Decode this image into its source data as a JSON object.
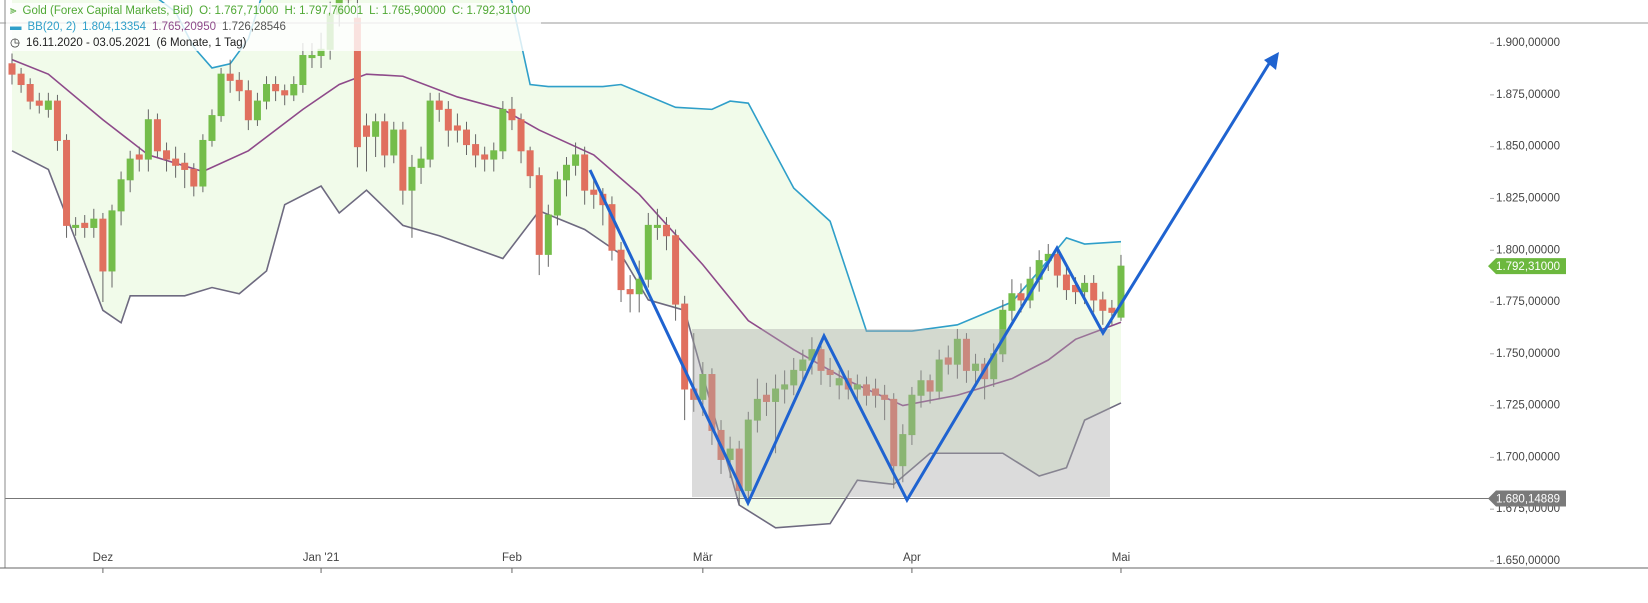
{
  "header": {
    "instrument": "Gold (Forex Capital Markets, Bid)",
    "open": "O: 1.767,71000",
    "high": "H: 1.797,76001",
    "low": "L: 1.765,90000",
    "close": "C: 1.792,31000",
    "indicator": "BB(20, 2)",
    "upper": "1.804,13354",
    "middle": "1.765,20950",
    "lower": "1.726,28546",
    "range": "16.11.2020 - 03.05.2021",
    "span": "(6 Monate, 1 Tag)"
  },
  "chart_data": {
    "type": "candlestick",
    "categories": [
      null,
      null,
      null,
      null,
      null,
      null,
      null,
      null,
      null,
      null,
      "Dez",
      null,
      null,
      null,
      null,
      null,
      null,
      null,
      null,
      null,
      null,
      null,
      null,
      null,
      null,
      null,
      null,
      null,
      null,
      null,
      null,
      null,
      null,
      null,
      "Jan '21",
      null,
      null,
      null,
      null,
      null,
      null,
      null,
      null,
      null,
      null,
      null,
      null,
      null,
      null,
      null,
      null,
      null,
      null,
      null,
      null,
      "Feb",
      null,
      null,
      null,
      null,
      null,
      null,
      null,
      null,
      null,
      null,
      null,
      null,
      null,
      null,
      null,
      null,
      null,
      null,
      null,
      null,
      "Mär",
      null,
      null,
      null,
      null,
      null,
      null,
      null,
      null,
      null,
      null,
      null,
      null,
      null,
      null,
      null,
      null,
      null,
      null,
      null,
      null,
      null,
      null,
      "Apr",
      null,
      null,
      null,
      null,
      null,
      null,
      null,
      null,
      null,
      null,
      null,
      null,
      null,
      null,
      null,
      null,
      null,
      null,
      null,
      null,
      null,
      null,
      "Mai"
    ],
    "ohlc": [
      [
        1890,
        1895,
        1880,
        1885
      ],
      [
        1885,
        1888,
        1876,
        1880
      ],
      [
        1880,
        1883,
        1868,
        1872
      ],
      [
        1872,
        1876,
        1866,
        1870
      ],
      [
        1868,
        1876,
        1864,
        1872
      ],
      [
        1872,
        1875,
        1848,
        1853
      ],
      [
        1853,
        1856,
        1806,
        1812
      ],
      [
        1811,
        1816,
        1807,
        1812
      ],
      [
        1813,
        1817,
        1806,
        1811
      ],
      [
        1811,
        1820,
        1806,
        1815
      ],
      [
        1815,
        1818,
        1775,
        1790
      ],
      [
        1790,
        1822,
        1782,
        1819
      ],
      [
        1819,
        1838,
        1812,
        1834
      ],
      [
        1834,
        1848,
        1828,
        1844
      ],
      [
        1846,
        1850,
        1838,
        1844
      ],
      [
        1844,
        1868,
        1838,
        1863
      ],
      [
        1863,
        1866,
        1845,
        1848
      ],
      [
        1848,
        1852,
        1838,
        1844
      ],
      [
        1844,
        1850,
        1835,
        1841
      ],
      [
        1842,
        1847,
        1830,
        1839
      ],
      [
        1839,
        1842,
        1826,
        1831
      ],
      [
        1831,
        1856,
        1828,
        1853
      ],
      [
        1853,
        1868,
        1850,
        1865
      ],
      [
        1865,
        1888,
        1862,
        1885
      ],
      [
        1885,
        1892,
        1876,
        1882
      ],
      [
        1882,
        1886,
        1872,
        1877
      ],
      [
        1877,
        1882,
        1858,
        1863
      ],
      [
        1863,
        1876,
        1860,
        1872
      ],
      [
        1872,
        1884,
        1868,
        1880
      ],
      [
        1880,
        1884,
        1872,
        1877
      ],
      [
        1877,
        1880,
        1870,
        1875
      ],
      [
        1875,
        1884,
        1872,
        1880
      ],
      [
        1880,
        1900,
        1876,
        1894
      ],
      [
        1893,
        1900,
        1888,
        1894
      ],
      [
        1894,
        1905,
        1888,
        1897
      ],
      [
        1897,
        1920,
        1892,
        1914
      ],
      [
        1914,
        1932,
        1908,
        1925
      ],
      [
        1925,
        1945,
        1918,
        1921
      ],
      [
        1912,
        1955,
        1840,
        1850
      ],
      [
        1860,
        1866,
        1838,
        1855
      ],
      [
        1855,
        1866,
        1845,
        1862
      ],
      [
        1862,
        1866,
        1840,
        1846
      ],
      [
        1846,
        1862,
        1842,
        1858
      ],
      [
        1858,
        1862,
        1822,
        1829
      ],
      [
        1829,
        1846,
        1806,
        1840
      ],
      [
        1840,
        1850,
        1832,
        1844
      ],
      [
        1844,
        1876,
        1840,
        1872
      ],
      [
        1872,
        1876,
        1862,
        1868
      ],
      [
        1868,
        1872,
        1850,
        1858
      ],
      [
        1860,
        1866,
        1852,
        1858
      ],
      [
        1858,
        1862,
        1846,
        1851
      ],
      [
        1851,
        1856,
        1840,
        1846
      ],
      [
        1846,
        1850,
        1838,
        1844
      ],
      [
        1844,
        1852,
        1838,
        1848
      ],
      [
        1848,
        1872,
        1844,
        1868
      ],
      [
        1868,
        1874,
        1858,
        1863
      ],
      [
        1863,
        1866,
        1842,
        1848
      ],
      [
        1848,
        1850,
        1830,
        1836
      ],
      [
        1836,
        1840,
        1788,
        1798
      ],
      [
        1798,
        1822,
        1792,
        1817
      ],
      [
        1817,
        1838,
        1812,
        1834
      ],
      [
        1834,
        1845,
        1826,
        1841
      ],
      [
        1841,
        1852,
        1836,
        1846
      ],
      [
        1846,
        1850,
        1822,
        1829
      ],
      [
        1829,
        1834,
        1820,
        1827
      ],
      [
        1827,
        1830,
        1812,
        1822
      ],
      [
        1822,
        1826,
        1795,
        1800
      ],
      [
        1800,
        1804,
        1775,
        1781
      ],
      [
        1781,
        1788,
        1770,
        1779
      ],
      [
        1779,
        1795,
        1770,
        1786
      ],
      [
        1786,
        1818,
        1782,
        1812
      ],
      [
        1811,
        1820,
        1805,
        1812
      ],
      [
        1812,
        1816,
        1800,
        1807
      ],
      [
        1807,
        1810,
        1766,
        1774
      ],
      [
        1774,
        1778,
        1718,
        1733
      ],
      [
        1733,
        1760,
        1722,
        1728
      ],
      [
        1728,
        1746,
        1720,
        1740
      ],
      [
        1740,
        1743,
        1706,
        1713
      ],
      [
        1713,
        1718,
        1692,
        1699
      ],
      [
        1699,
        1710,
        1690,
        1704
      ],
      [
        1704,
        1708,
        1677,
        1684
      ],
      [
        1684,
        1722,
        1680,
        1718
      ],
      [
        1718,
        1738,
        1712,
        1728
      ],
      [
        1730,
        1736,
        1720,
        1727
      ],
      [
        1727,
        1740,
        1702,
        1733
      ],
      [
        1733,
        1742,
        1726,
        1735
      ],
      [
        1735,
        1748,
        1730,
        1742
      ],
      [
        1742,
        1752,
        1736,
        1747
      ],
      [
        1747,
        1758,
        1740,
        1752
      ],
      [
        1752,
        1756,
        1735,
        1742
      ],
      [
        1742,
        1748,
        1734,
        1740
      ],
      [
        1735,
        1742,
        1728,
        1738
      ],
      [
        1738,
        1742,
        1728,
        1733
      ],
      [
        1733,
        1740,
        1728,
        1735
      ],
      [
        1735,
        1739,
        1725,
        1730
      ],
      [
        1733,
        1738,
        1724,
        1730
      ],
      [
        1730,
        1735,
        1718,
        1728
      ],
      [
        1728,
        1731,
        1685,
        1696
      ],
      [
        1696,
        1716,
        1688,
        1711
      ],
      [
        1711,
        1734,
        1706,
        1730
      ],
      [
        1730,
        1742,
        1724,
        1737
      ],
      [
        1737,
        1740,
        1726,
        1732
      ],
      [
        1732,
        1752,
        1728,
        1747
      ],
      [
        1748,
        1754,
        1740,
        1745
      ],
      [
        1745,
        1762,
        1738,
        1757
      ],
      [
        1757,
        1760,
        1736,
        1742
      ],
      [
        1742,
        1750,
        1735,
        1745
      ],
      [
        1745,
        1748,
        1728,
        1738
      ],
      [
        1738,
        1755,
        1734,
        1750
      ],
      [
        1750,
        1776,
        1746,
        1771
      ],
      [
        1771,
        1786,
        1766,
        1779
      ],
      [
        1779,
        1784,
        1770,
        1776
      ],
      [
        1776,
        1792,
        1772,
        1786
      ],
      [
        1786,
        1800,
        1780,
        1795
      ],
      [
        1795,
        1803,
        1790,
        1798
      ],
      [
        1798,
        1800,
        1782,
        1788
      ],
      [
        1788,
        1792,
        1776,
        1781
      ],
      [
        1783,
        1787,
        1774,
        1780
      ],
      [
        1780,
        1788,
        1774,
        1784
      ],
      [
        1784,
        1788,
        1770,
        1776
      ],
      [
        1776,
        1780,
        1764,
        1771
      ],
      [
        1772,
        1776,
        1764,
        1770
      ],
      [
        1767.71,
        1797.76001,
        1765.9,
        1792.31
      ]
    ],
    "up_color": "#74bd4a",
    "down_color": "#e0705f",
    "bands": [
      {
        "color": "#2f9fc9",
        "x": [
          0,
          10,
          15,
          18,
          20,
          22,
          24,
          26,
          28,
          34,
          40,
          50,
          55,
          57,
          59,
          65,
          67,
          73,
          77,
          79,
          81,
          86,
          90,
          94,
          99,
          104,
          110,
          113,
          116,
          118,
          122
        ],
        "values": [
          1960,
          1950,
          1925,
          1915,
          1898,
          1888,
          1890,
          1902,
          1930,
          1975,
          1980,
          1960,
          1920,
          1880,
          1879,
          1879,
          1880,
          1869,
          1868,
          1872,
          1871,
          1830,
          1814,
          1761,
          1761,
          1764,
          1775,
          1790,
          1806,
          1803,
          1804.13354
        ]
      },
      {
        "color": "#8e4a8a",
        "x": [
          0,
          4,
          10,
          15,
          21,
          26,
          32,
          36,
          39,
          43,
          49,
          54,
          58,
          64,
          69,
          76,
          81,
          86,
          92,
          98,
          104,
          110,
          114,
          117,
          122
        ],
        "values": [
          1892,
          1885,
          1863,
          1846,
          1838,
          1848,
          1868,
          1880,
          1885,
          1884,
          1874,
          1868,
          1858,
          1846,
          1827,
          1793,
          1766,
          1752,
          1737,
          1725,
          1730,
          1738,
          1747,
          1757,
          1765.2095
        ]
      },
      {
        "color": "#6e6a80",
        "x": [
          0,
          4,
          10,
          12,
          13,
          19,
          22,
          25,
          28,
          30,
          34,
          36,
          39,
          43,
          47,
          54,
          58,
          63,
          67,
          70,
          74,
          80,
          84,
          90,
          93,
          97,
          101,
          109,
          113,
          116,
          118,
          122
        ],
        "values": [
          1848,
          1839,
          1771,
          1765,
          1778,
          1778,
          1782,
          1779,
          1790,
          1822,
          1831,
          1818,
          1829,
          1812,
          1807,
          1796,
          1819,
          1810,
          1798,
          1776,
          1771,
          1677,
          1666,
          1668,
          1689,
          1687,
          1702,
          1702,
          1691,
          1695,
          1718,
          1726.28546
        ]
      }
    ],
    "ylim": [
      1646.6,
      1920.8
    ],
    "yticks": [
      {
        "value": 1650,
        "label": "1.650,00000"
      },
      {
        "value": 1675,
        "label": "1.675,00000"
      },
      {
        "value": 1700,
        "label": "1.700,00000"
      },
      {
        "value": 1725,
        "label": "1.725,00000"
      },
      {
        "value": 1750,
        "label": "1.750,00000"
      },
      {
        "value": 1775,
        "label": "1.775,00000"
      },
      {
        "value": 1800,
        "label": "1.800,00000"
      },
      {
        "value": 1825,
        "label": "1.825,00000"
      },
      {
        "value": 1850,
        "label": "1.850,00000"
      },
      {
        "value": 1875,
        "label": "1.875,00000"
      },
      {
        "value": 1900,
        "label": "1.900,00000"
      }
    ],
    "last_price": {
      "value": 1792.31,
      "label": "1.792,31000",
      "color": "#6cb83e"
    },
    "level": {
      "value": 1680.14889,
      "label": "1.680,14889",
      "color": "#7a7a7a"
    }
  }
}
